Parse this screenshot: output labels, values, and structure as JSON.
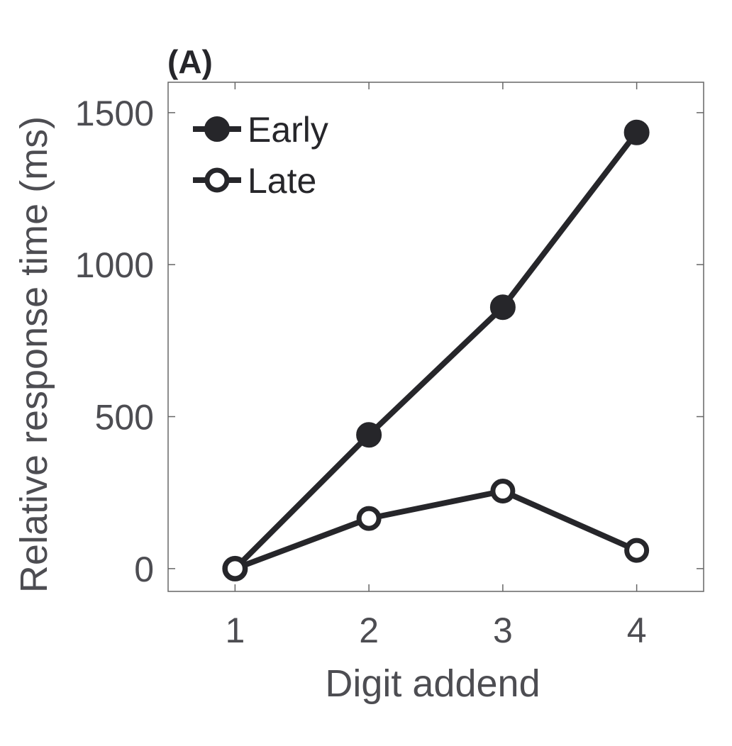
{
  "chart_data": {
    "panel_label": "(A)",
    "type": "line",
    "xlabel": "Digit addend",
    "ylabel": "Relative response time (ms)",
    "x": [
      1,
      2,
      3,
      4
    ],
    "x_ticks": [
      "1",
      "2",
      "3",
      "4"
    ],
    "xlim": [
      0.5,
      4.5
    ],
    "y_ticks": [
      "0",
      "500",
      "1000",
      "1500"
    ],
    "ylim": [
      -75,
      1600
    ],
    "grid": false,
    "legend_position": "top-left",
    "series": [
      {
        "name": "Early",
        "marker": "filled-circle",
        "values": [
          0,
          440,
          860,
          1435
        ]
      },
      {
        "name": "Late",
        "marker": "open-circle",
        "values": [
          0,
          165,
          255,
          60
        ]
      }
    ],
    "colors": {
      "line": "#26262a",
      "axis": "#666666",
      "text": "#4d4d52",
      "background": "#ffffff"
    }
  }
}
